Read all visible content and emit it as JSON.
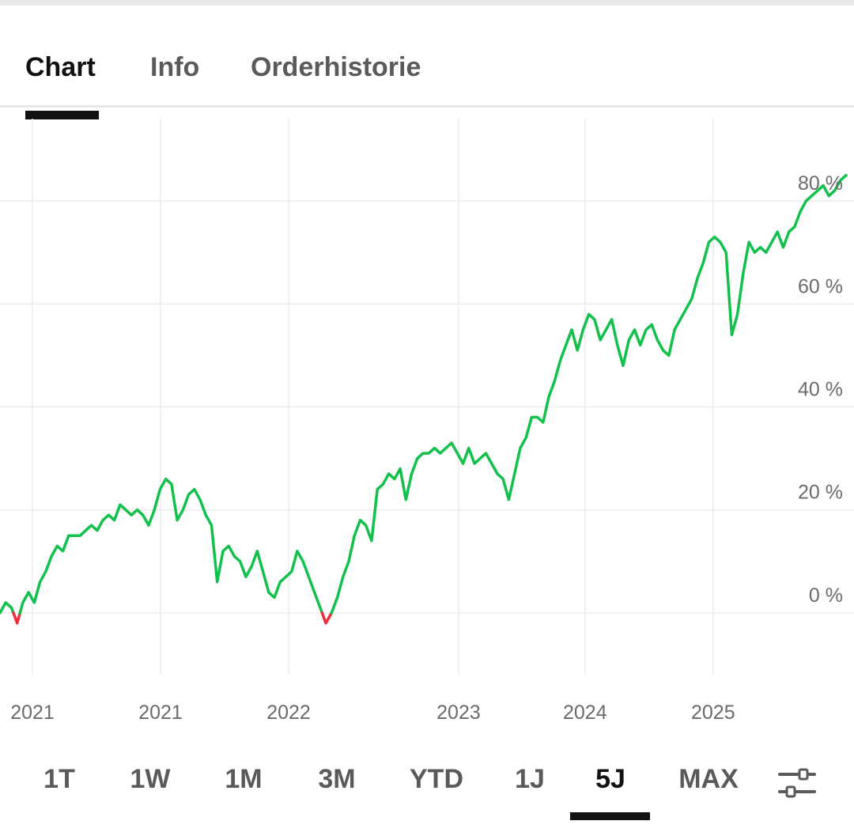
{
  "tabs": [
    {
      "label": "Chart",
      "active": true
    },
    {
      "label": "Info",
      "active": false
    },
    {
      "label": "Orderhistorie",
      "active": false
    }
  ],
  "ranges": [
    {
      "label": "1T",
      "active": false
    },
    {
      "label": "1W",
      "active": false
    },
    {
      "label": "1M",
      "active": false
    },
    {
      "label": "3M",
      "active": false
    },
    {
      "label": "YTD",
      "active": false
    },
    {
      "label": "1J",
      "active": false
    },
    {
      "label": "5J",
      "active": true
    },
    {
      "label": "MAX",
      "active": false
    }
  ],
  "settings_icon": "sliders-icon",
  "colors": {
    "positive": "#12c14b",
    "negative": "#ef2b3c",
    "grid": "#ececec",
    "text": "#6b6b6b",
    "active": "#111111"
  },
  "chart_data": {
    "type": "line",
    "y_unit": "%",
    "ylim": [
      -12,
      96
    ],
    "yticks": [
      0,
      20,
      40,
      60,
      80
    ],
    "ytick_labels": [
      "0 %",
      "20 %",
      "40 %",
      "60 %",
      "80 %"
    ],
    "x_ticks": [
      {
        "label": "2021",
        "pos": 0.038
      },
      {
        "label": "2021",
        "pos": 0.188
      },
      {
        "label": "2022",
        "pos": 0.338
      },
      {
        "label": "2023",
        "pos": 0.537
      },
      {
        "label": "2024",
        "pos": 0.685
      },
      {
        "label": "2025",
        "pos": 0.835
      }
    ],
    "grid": true,
    "zero_line": 0,
    "series": [
      {
        "values": [
          0,
          2,
          1,
          -2,
          2,
          4,
          2,
          6,
          8,
          11,
          13,
          12,
          15,
          15,
          15,
          16,
          17,
          16,
          18,
          19,
          18,
          21,
          20,
          19,
          20,
          19,
          17,
          20,
          24,
          26,
          25,
          18,
          20,
          23,
          24,
          22,
          19,
          17,
          6,
          12,
          13,
          11,
          10,
          7,
          9,
          12,
          8,
          4,
          3,
          6,
          7,
          8,
          12,
          10,
          7,
          4,
          1,
          -2,
          0,
          3,
          7,
          10,
          15,
          18,
          17,
          14,
          24,
          25,
          27,
          26,
          28,
          22,
          27,
          30,
          31,
          31,
          32,
          31,
          32,
          33,
          31,
          29,
          32,
          29,
          30,
          31,
          29,
          27,
          26,
          22,
          27,
          32,
          34,
          38,
          38,
          37,
          42,
          45,
          49,
          52,
          55,
          51,
          55,
          58,
          57,
          53,
          55,
          57,
          52,
          48,
          53,
          55,
          52,
          55,
          56,
          53,
          51,
          50,
          55,
          57,
          59,
          61,
          65,
          68,
          72,
          73,
          72,
          70,
          54,
          58,
          66,
          72,
          70,
          71,
          70,
          72,
          74,
          71,
          74,
          75,
          78,
          80,
          81,
          82,
          83,
          81,
          82,
          84,
          85
        ]
      }
    ]
  }
}
